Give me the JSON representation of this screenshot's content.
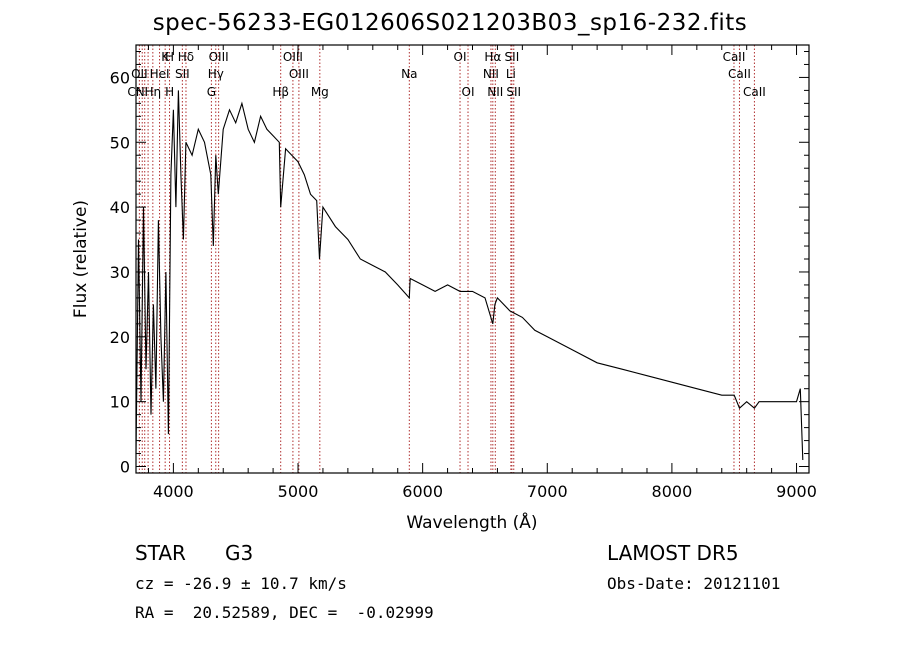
{
  "chart_data": {
    "type": "line",
    "title": "spec-56233-EG012606S021203B03_sp16-232.fits",
    "xlabel": "Wavelength (Å)",
    "ylabel": "Flux (relative)",
    "xlim": [
      3700,
      9100
    ],
    "ylim": [
      -1,
      65
    ],
    "x_ticks": [
      4000,
      5000,
      6000,
      7000,
      8000,
      9000
    ],
    "y_ticks": [
      0,
      10,
      20,
      30,
      40,
      50,
      60
    ],
    "series": [
      {
        "x": [
          3700,
          3720,
          3740,
          3760,
          3780,
          3800,
          3820,
          3840,
          3860,
          3880,
          3900,
          3920,
          3940,
          3960,
          3980,
          4000,
          4020,
          4040,
          4060,
          4080,
          4100,
          4150,
          4200,
          4250,
          4300,
          4320,
          4340,
          4360,
          4400,
          4450,
          4500,
          4550,
          4600,
          4650,
          4700,
          4750,
          4800,
          4850,
          4861,
          4900,
          4950,
          5000,
          5050,
          5100,
          5150,
          5172,
          5200,
          5300,
          5400,
          5500,
          5600,
          5700,
          5800,
          5893,
          5900,
          6000,
          6100,
          6200,
          6300,
          6400,
          6500,
          6563,
          6580,
          6600,
          6700,
          6800,
          6900,
          7000,
          7200,
          7400,
          7600,
          7800,
          8000,
          8200,
          8400,
          8500,
          8542,
          8600,
          8662,
          8700,
          8800,
          8900,
          9000,
          9030,
          9050
        ],
        "y": [
          2,
          35,
          10,
          40,
          15,
          30,
          8,
          25,
          12,
          38,
          20,
          10,
          30,
          5,
          45,
          55,
          40,
          58,
          45,
          35,
          50,
          48,
          52,
          50,
          45,
          34,
          48,
          42,
          52,
          55,
          53,
          56,
          52,
          50,
          54,
          52,
          51,
          50,
          40,
          49,
          48,
          47,
          45,
          42,
          41,
          32,
          40,
          37,
          35,
          32,
          31,
          30,
          28,
          26,
          29,
          28,
          27,
          28,
          27,
          27,
          26,
          22,
          25,
          26,
          24,
          23,
          21,
          20,
          18,
          16,
          15,
          14,
          13,
          12,
          11,
          11,
          9,
          10,
          9,
          10,
          10,
          10,
          10,
          12,
          1
        ]
      }
    ],
    "line_labels": [
      {
        "label": "Hδ",
        "wave": 4101,
        "row": 1
      },
      {
        "label": "K",
        "wave": 3934,
        "row": 1
      },
      {
        "label": "H",
        "wave": 3969,
        "row": 1
      },
      {
        "label": "OIII",
        "wave": 4363,
        "row": 1
      },
      {
        "label": "OII",
        "wave": 3727,
        "row": 2
      },
      {
        "label": "HeI",
        "wave": 3889,
        "row": 2
      },
      {
        "label": "SII",
        "wave": 4072,
        "row": 2
      },
      {
        "label": "Hγ",
        "wave": 4340,
        "row": 2
      },
      {
        "label": "CN",
        "wave": 3700,
        "row": 3
      },
      {
        "label": "Hη",
        "wave": 3835,
        "row": 3
      },
      {
        "label": "H",
        "wave": 3970,
        "row": 3
      },
      {
        "label": "G",
        "wave": 4305,
        "row": 3
      },
      {
        "label": "OIII",
        "wave": 4959,
        "row": 1
      },
      {
        "label": "OIII",
        "wave": 5007,
        "row": 2
      },
      {
        "label": "Hβ",
        "wave": 4861,
        "row": 3
      },
      {
        "label": "Mg",
        "wave": 5175,
        "row": 3
      },
      {
        "label": "Na",
        "wave": 5893,
        "row": 2
      },
      {
        "label": "OI",
        "wave": 6300,
        "row": 1
      },
      {
        "label": "OI",
        "wave": 6364,
        "row": 3
      },
      {
        "label": "Hα",
        "wave": 6563,
        "row": 1
      },
      {
        "label": "SII",
        "wave": 6716,
        "row": 1
      },
      {
        "label": "NII",
        "wave": 6548,
        "row": 2
      },
      {
        "label": "Li",
        "wave": 6708,
        "row": 2
      },
      {
        "label": "NII",
        "wave": 6583,
        "row": 3
      },
      {
        "label": "SII",
        "wave": 6731,
        "row": 3
      },
      {
        "label": "CaII",
        "wave": 8498,
        "row": 1
      },
      {
        "label": "CaII",
        "wave": 8542,
        "row": 2
      },
      {
        "label": "CaII",
        "wave": 8662,
        "row": 3
      }
    ],
    "line_marks": [
      3727,
      3750,
      3770,
      3797,
      3835,
      3889,
      3934,
      3969,
      4072,
      4101,
      4305,
      4340,
      4363,
      4861,
      4959,
      5007,
      5175,
      5893,
      6300,
      6364,
      6548,
      6563,
      6583,
      6708,
      6716,
      6731,
      8498,
      8542,
      8662
    ]
  },
  "info": {
    "object_class": "STAR",
    "subclass": "G3",
    "survey": "LAMOST DR5",
    "cz": "cz = -26.9 ± 10.7 km/s",
    "obs_date": "Obs-Date: 20121101",
    "coords": "RA =  20.52589, DEC =  -0.02999"
  },
  "colors": {
    "marker_line": "#b03030",
    "spectrum": "#000000"
  }
}
